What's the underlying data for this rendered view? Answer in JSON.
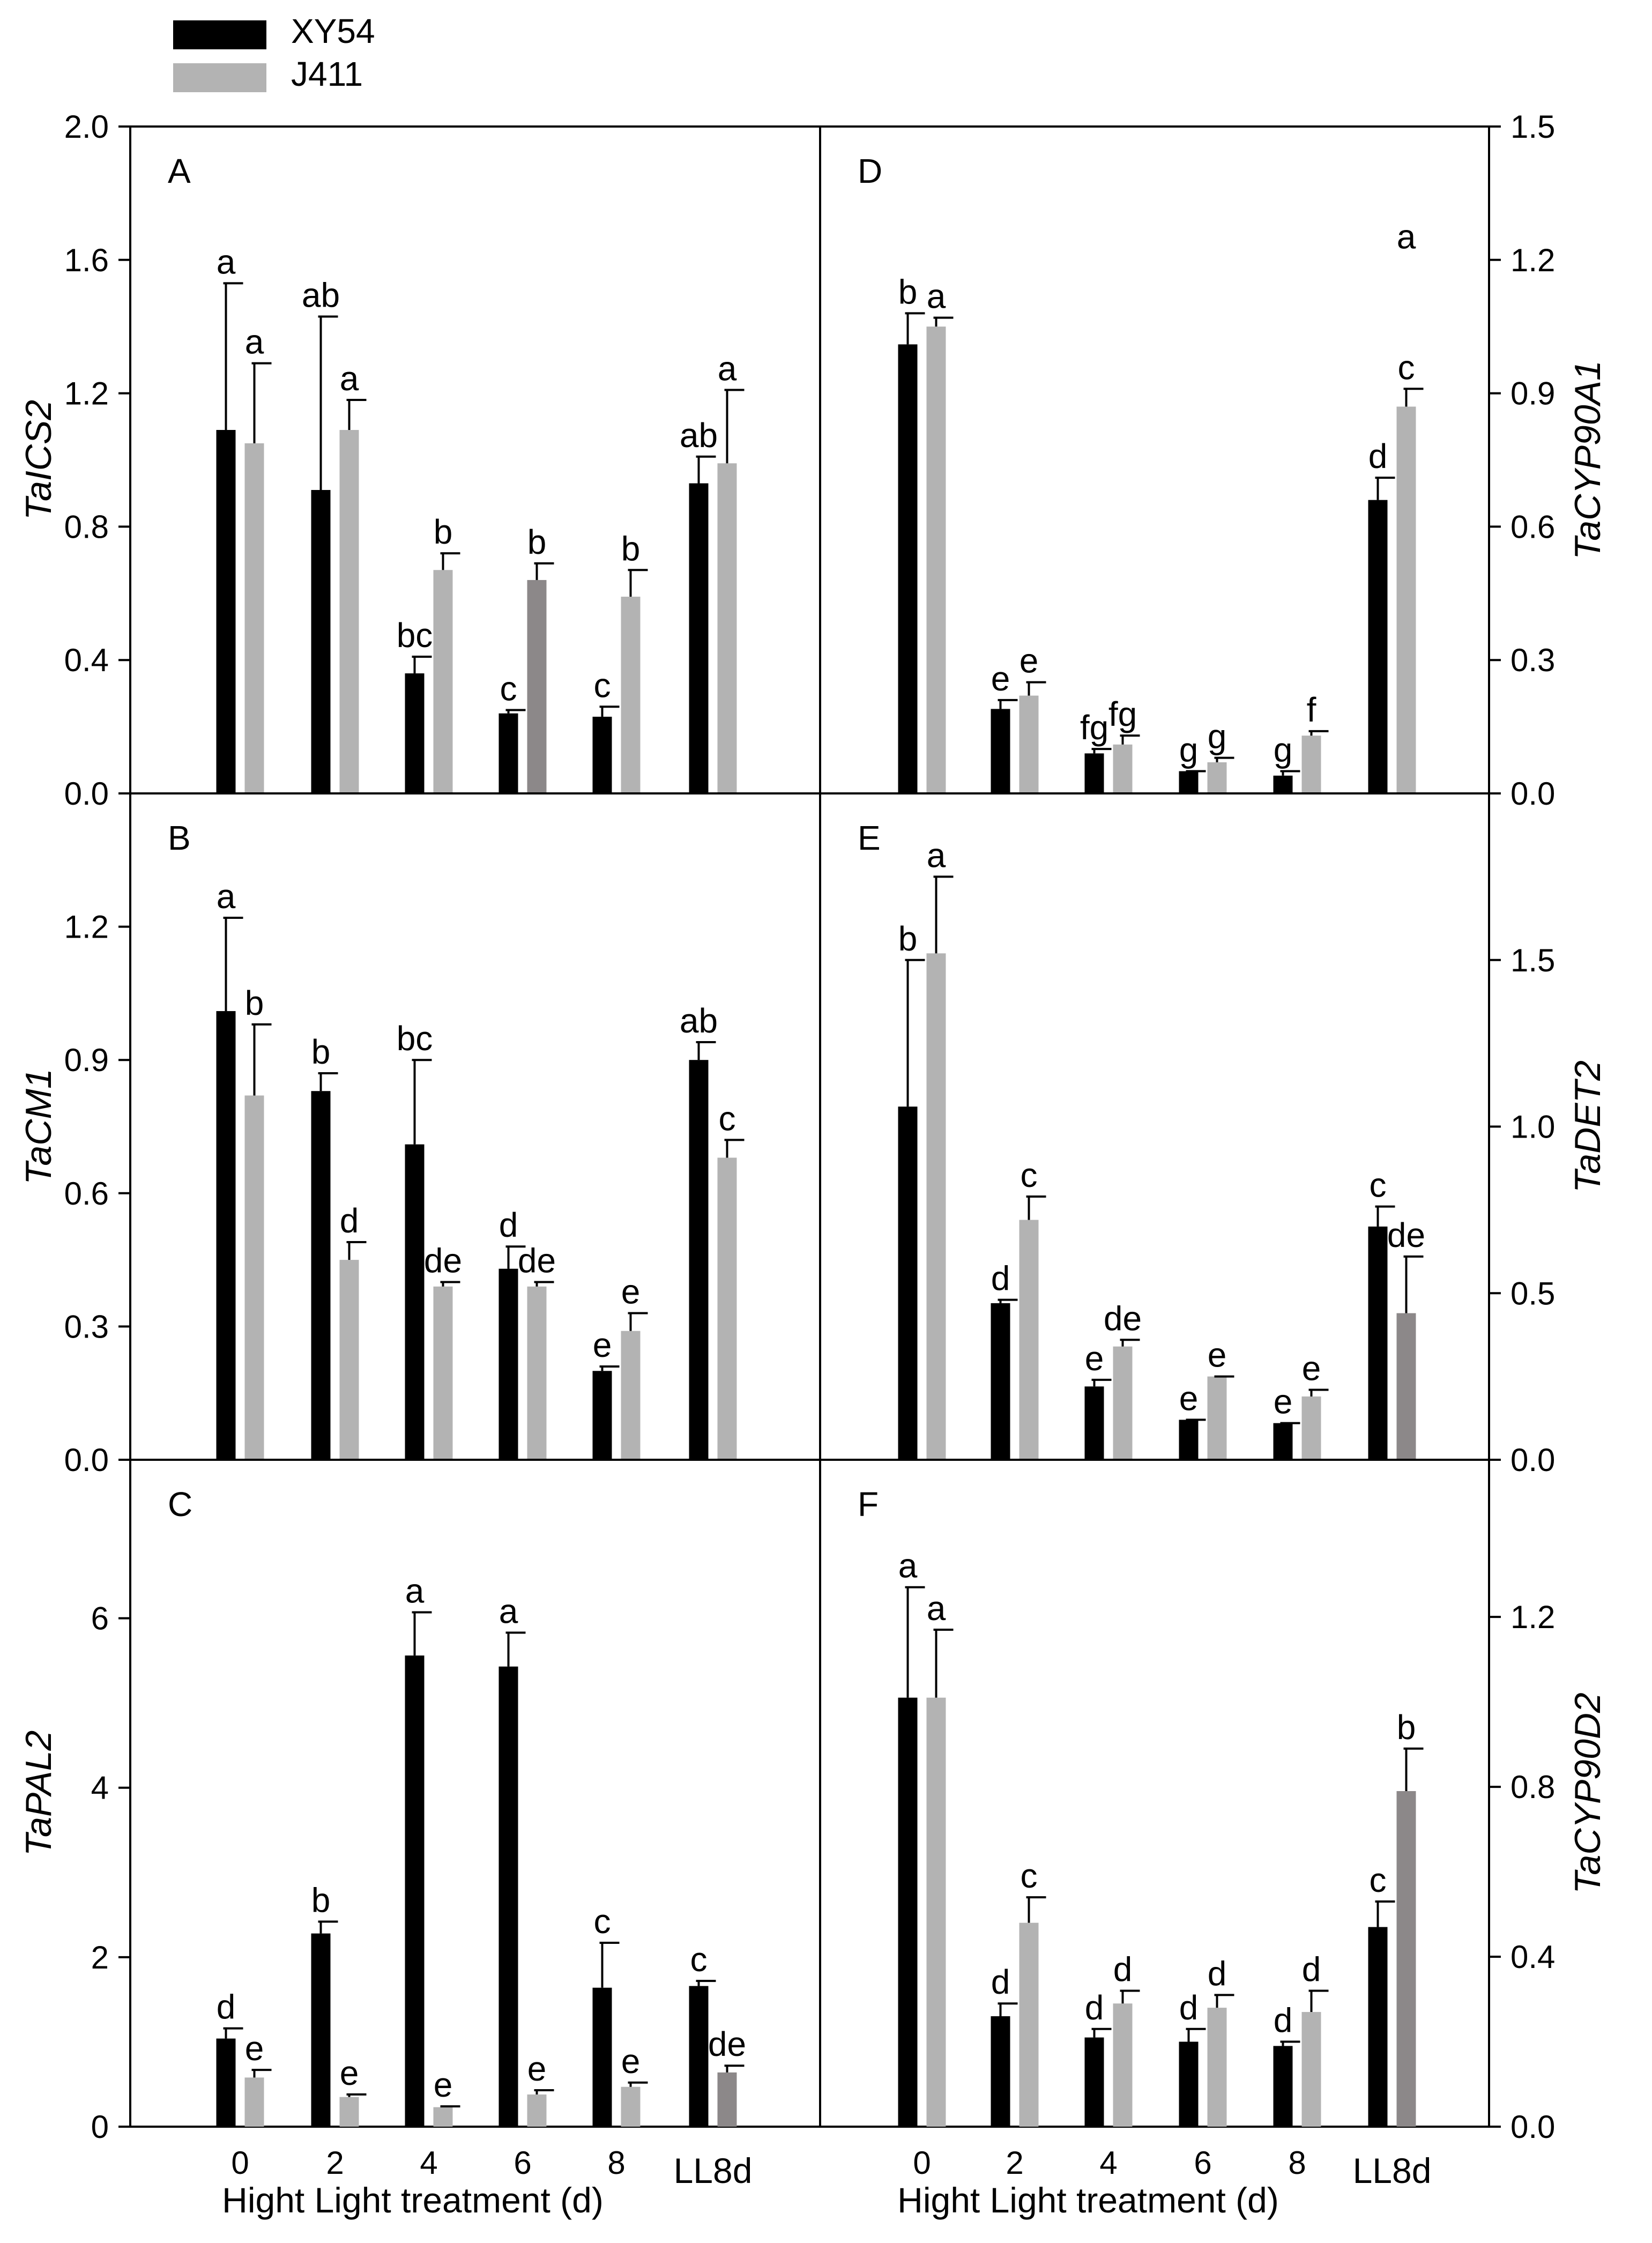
{
  "legend": {
    "entries": [
      {
        "name": "XY54",
        "color": "#000000"
      },
      {
        "name": "J411",
        "color": "#b3b3b3"
      }
    ],
    "placement": "top-left"
  },
  "colors": {
    "series1": "#000000",
    "series2": "#b3b3b3",
    "series2_alt": "#8c8889"
  },
  "chart_data": [
    {
      "type": "bar",
      "panel": "A",
      "ylabel": "TaICS2",
      "ylim": [
        0,
        2.0
      ],
      "yticks": [
        "0.0",
        "0.4",
        "0.8",
        "1.2",
        "1.6",
        "2.0"
      ],
      "tick_values": [
        0,
        0.4,
        0.8,
        1.2,
        1.6,
        2.0
      ],
      "axis_side": "left",
      "categories": [
        "0",
        "2",
        "4",
        "6",
        "8",
        "LL8d"
      ],
      "xlabel": "",
      "series": [
        {
          "name": "XY54",
          "values": [
            1.09,
            0.91,
            0.36,
            0.24,
            0.23,
            0.93
          ],
          "errors": [
            0.44,
            0.52,
            0.05,
            0.01,
            0.03,
            0.08
          ],
          "labels": [
            "a",
            "ab",
            "bc",
            "c",
            "c",
            "ab"
          ],
          "colors": [
            "#000000",
            "#000000",
            "#000000",
            "#000000",
            "#000000",
            "#000000"
          ]
        },
        {
          "name": "J411",
          "values": [
            1.05,
            1.09,
            0.67,
            0.64,
            0.59,
            0.99
          ],
          "errors": [
            0.24,
            0.09,
            0.05,
            0.05,
            0.08,
            0.22
          ],
          "labels": [
            "a",
            "a",
            "b",
            "b",
            "b",
            "a"
          ],
          "colors": [
            "#b3b3b3",
            "#b3b3b3",
            "#b3b3b3",
            "#8c8889",
            "#b3b3b3",
            "#b3b3b3"
          ]
        }
      ]
    },
    {
      "type": "bar",
      "panel": "B",
      "ylabel": "TaCM1",
      "ylim": [
        0,
        1.5
      ],
      "yticks": [
        "0.0",
        "0.3",
        "0.6",
        "0.9",
        "1.2"
      ],
      "tick_values": [
        0,
        0.3,
        0.6,
        0.9,
        1.2
      ],
      "axis_side": "left",
      "categories": [
        "0",
        "2",
        "4",
        "6",
        "8",
        "LL8d"
      ],
      "xlabel": "",
      "series": [
        {
          "name": "XY54",
          "values": [
            1.01,
            0.83,
            0.71,
            0.43,
            0.2,
            0.9
          ],
          "errors": [
            0.21,
            0.04,
            0.19,
            0.05,
            0.01,
            0.04
          ],
          "labels": [
            "a",
            "b",
            "bc",
            "d",
            "e",
            "ab"
          ],
          "colors": [
            "#000000",
            "#000000",
            "#000000",
            "#000000",
            "#000000",
            "#000000"
          ]
        },
        {
          "name": "J411",
          "values": [
            0.82,
            0.45,
            0.39,
            0.39,
            0.29,
            0.68
          ],
          "errors": [
            0.16,
            0.04,
            0.01,
            0.01,
            0.04,
            0.04
          ],
          "labels": [
            "b",
            "d",
            "de",
            "de",
            "e",
            "c"
          ],
          "colors": [
            "#b3b3b3",
            "#b3b3b3",
            "#b3b3b3",
            "#b3b3b3",
            "#b3b3b3",
            "#b3b3b3"
          ]
        }
      ]
    },
    {
      "type": "bar",
      "panel": "C",
      "ylabel": "TaPAL2",
      "ylim": [
        0,
        7.87
      ],
      "yticks": [
        "0",
        "2",
        "4",
        "6"
      ],
      "tick_values": [
        0,
        2,
        4,
        6
      ],
      "axis_side": "left",
      "categories": [
        "0",
        "2",
        "4",
        "6",
        "8",
        "LL8d"
      ],
      "xlabel": "Hight Light treatment (d)",
      "series": [
        {
          "name": "XY54",
          "values": [
            1.04,
            2.28,
            5.56,
            5.43,
            1.64,
            1.66
          ],
          "errors": [
            0.12,
            0.14,
            0.51,
            0.4,
            0.53,
            0.06
          ],
          "labels": [
            "d",
            "b",
            "a",
            "a",
            "c",
            "c"
          ],
          "colors": [
            "#000000",
            "#000000",
            "#000000",
            "#000000",
            "#000000",
            "#000000"
          ]
        },
        {
          "name": "J411",
          "values": [
            0.58,
            0.35,
            0.23,
            0.38,
            0.47,
            0.64
          ],
          "errors": [
            0.09,
            0.03,
            0.01,
            0.05,
            0.05,
            0.08
          ],
          "labels": [
            "e",
            "e",
            "e",
            "e",
            "e",
            "de"
          ],
          "colors": [
            "#b3b3b3",
            "#b3b3b3",
            "#b3b3b3",
            "#b3b3b3",
            "#b3b3b3",
            "#8c8889"
          ]
        }
      ]
    },
    {
      "type": "bar",
      "panel": "D",
      "ylabel": "TaCYP90A1",
      "ylim": [
        0,
        1.5
      ],
      "yticks": [
        "0.0",
        "0.3",
        "0.6",
        "0.9",
        "1.2",
        "1.5"
      ],
      "tick_values": [
        0,
        0.3,
        0.6,
        0.9,
        1.2,
        1.5
      ],
      "axis_side": "right",
      "categories": [
        "0",
        "2",
        "4",
        "6",
        "8",
        "LL8d"
      ],
      "xlabel": "",
      "series": [
        {
          "name": "XY54",
          "values": [
            1.01,
            0.19,
            0.09,
            0.05,
            0.04,
            0.66
          ],
          "errors": [
            0.07,
            0.02,
            0.01,
            0.0,
            0.01,
            0.05
          ],
          "labels": [
            "b",
            "e",
            "fg",
            "g",
            "g",
            "d"
          ],
          "colors": [
            "#000000",
            "#000000",
            "#000000",
            "#000000",
            "#000000",
            "#000000"
          ]
        },
        {
          "name": "J411",
          "values": [
            1.05,
            0.22,
            0.11,
            0.07,
            0.13,
            0.87
          ],
          "errors": [
            0.02,
            0.03,
            0.02,
            0.01,
            0.01,
            0.04
          ],
          "labels": [
            "a",
            "e",
            "fg",
            "g",
            "f",
            "c"
          ],
          "colors": [
            "#b3b3b3",
            "#b3b3b3",
            "#b3b3b3",
            "#b3b3b3",
            "#b3b3b3",
            "#b3b3b3"
          ]
        }
      ],
      "annotations": [
        {
          "text": "a",
          "x_category": "LL8d",
          "y": 1.25
        }
      ]
    },
    {
      "type": "bar",
      "panel": "E",
      "ylabel": "TaDET2",
      "ylim": [
        0,
        2.0
      ],
      "yticks": [
        "0.0",
        "0.5",
        "1.0",
        "1.5"
      ],
      "tick_values": [
        0,
        0.5,
        1.0,
        1.5
      ],
      "axis_side": "right",
      "categories": [
        "0",
        "2",
        "4",
        "6",
        "8",
        "LL8d"
      ],
      "xlabel": "",
      "series": [
        {
          "name": "XY54",
          "values": [
            1.06,
            0.47,
            0.22,
            0.12,
            0.11,
            0.7
          ],
          "errors": [
            0.44,
            0.01,
            0.02,
            0.0,
            0.0,
            0.06
          ],
          "labels": [
            "b",
            "d",
            "e",
            "e",
            "e",
            "c"
          ],
          "colors": [
            "#000000",
            "#000000",
            "#000000",
            "#000000",
            "#000000",
            "#000000"
          ]
        },
        {
          "name": "J411",
          "values": [
            1.52,
            0.72,
            0.34,
            0.25,
            0.19,
            0.44
          ],
          "errors": [
            0.23,
            0.07,
            0.02,
            0.0,
            0.02,
            0.17
          ],
          "labels": [
            "a",
            "c",
            "de",
            "e",
            "e",
            "de"
          ],
          "colors": [
            "#b3b3b3",
            "#b3b3b3",
            "#b3b3b3",
            "#b3b3b3",
            "#b3b3b3",
            "#8c8889"
          ]
        }
      ]
    },
    {
      "type": "bar",
      "panel": "F",
      "ylabel": "TaCYP90D2",
      "ylim": [
        0,
        1.57
      ],
      "yticks": [
        "0.0",
        "0.4",
        "0.8",
        "1.2"
      ],
      "tick_values": [
        0,
        0.4,
        0.8,
        1.2
      ],
      "axis_side": "right",
      "categories": [
        "0",
        "2",
        "4",
        "6",
        "8",
        "LL8d"
      ],
      "xlabel": "Hight Light treatment (d)",
      "series": [
        {
          "name": "XY54",
          "values": [
            1.01,
            0.26,
            0.21,
            0.2,
            0.19,
            0.47
          ],
          "errors": [
            0.26,
            0.03,
            0.02,
            0.03,
            0.01,
            0.06
          ],
          "labels": [
            "a",
            "d",
            "d",
            "d",
            "d",
            "c"
          ],
          "colors": [
            "#000000",
            "#000000",
            "#000000",
            "#000000",
            "#000000",
            "#000000"
          ]
        },
        {
          "name": "J411",
          "values": [
            1.01,
            0.48,
            0.29,
            0.28,
            0.27,
            0.79
          ],
          "errors": [
            0.16,
            0.06,
            0.03,
            0.03,
            0.05,
            0.1
          ],
          "labels": [
            "a",
            "c",
            "d",
            "d",
            "d",
            "b"
          ],
          "colors": [
            "#b3b3b3",
            "#b3b3b3",
            "#b3b3b3",
            "#b3b3b3",
            "#b3b3b3",
            "#8c8889"
          ]
        }
      ]
    }
  ]
}
